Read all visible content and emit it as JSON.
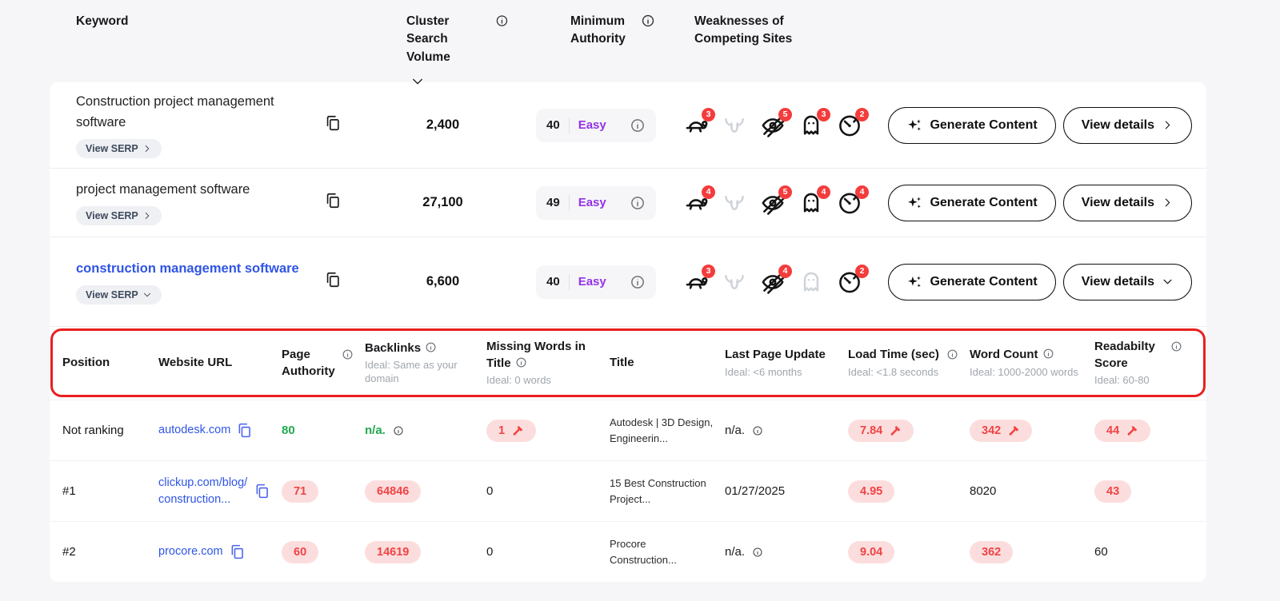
{
  "colors": {
    "accent_purple": "#9333ea",
    "link_blue": "#2f55e6",
    "badge_red": "#f43c3c",
    "pill_bg_red": "#fcdddd",
    "pill_text_red": "#f04444",
    "good_green": "#1faa4e",
    "annotation_red": "#e8201f"
  },
  "header": {
    "keyword": "Keyword",
    "cluster_search_volume": "Cluster Search Volume",
    "minimum_authority": "Minimum Authority",
    "weaknesses": "Weaknesses of Competing Sites"
  },
  "buttons": {
    "view_serp": "View SERP",
    "generate_content": "Generate Content",
    "view_details": "View details"
  },
  "keyword_rows": [
    {
      "keyword": "Construction project management software",
      "highlighted": false,
      "serp_chevron": "right",
      "volume": "2,400",
      "authority_score": "40",
      "authority_label": "Easy",
      "details_chevron": "right",
      "weaknesses": [
        {
          "icon": "turtle",
          "count": "3",
          "active": true
        },
        {
          "icon": "bull",
          "count": "",
          "active": false
        },
        {
          "icon": "eye-slash",
          "count": "5",
          "active": true
        },
        {
          "icon": "ghost",
          "count": "3",
          "active": true
        },
        {
          "icon": "gauge",
          "count": "2",
          "active": true
        }
      ]
    },
    {
      "keyword": "project management software",
      "highlighted": false,
      "serp_chevron": "right",
      "volume": "27,100",
      "authority_score": "49",
      "authority_label": "Easy",
      "details_chevron": "right",
      "weaknesses": [
        {
          "icon": "turtle",
          "count": "4",
          "active": true
        },
        {
          "icon": "bull",
          "count": "",
          "active": false
        },
        {
          "icon": "eye-slash",
          "count": "5",
          "active": true
        },
        {
          "icon": "ghost",
          "count": "4",
          "active": true
        },
        {
          "icon": "gauge",
          "count": "4",
          "active": true
        }
      ]
    },
    {
      "keyword": "construction management software",
      "highlighted": true,
      "serp_chevron": "down",
      "volume": "6,600",
      "authority_score": "40",
      "authority_label": "Easy",
      "details_chevron": "down",
      "weaknesses": [
        {
          "icon": "turtle",
          "count": "3",
          "active": true
        },
        {
          "icon": "bull",
          "count": "",
          "active": false
        },
        {
          "icon": "eye-slash",
          "count": "4",
          "active": true
        },
        {
          "icon": "ghost",
          "count": "",
          "active": false
        },
        {
          "icon": "gauge",
          "count": "2",
          "active": true
        }
      ]
    }
  ],
  "details_table": {
    "columns": [
      {
        "label": "Position",
        "sub": "",
        "info": "none"
      },
      {
        "label": "Website URL",
        "sub": "",
        "info": "none"
      },
      {
        "label": "Page Authority",
        "sub": "",
        "info": "right"
      },
      {
        "label": "Backlinks",
        "sub": "Ideal: Same as your domain",
        "info": "inline"
      },
      {
        "label": "Missing Words in Title",
        "sub": "Ideal: 0 words",
        "info": "inline"
      },
      {
        "label": "Title",
        "sub": "",
        "info": "none"
      },
      {
        "label": "Last Page Update",
        "sub": "Ideal: <6 months",
        "info": "none"
      },
      {
        "label": "Load Time (sec)",
        "sub": "Ideal: <1.8 seconds",
        "info": "right"
      },
      {
        "label": "Word Count",
        "sub": "Ideal: 1000-2000 words",
        "info": "inline"
      },
      {
        "label": "Readabilty Score",
        "sub": "Ideal: 60-80",
        "info": "right"
      }
    ],
    "rows": [
      {
        "position": "Not ranking",
        "url": "autodesk.com",
        "page_authority": {
          "v": "80",
          "s": "green"
        },
        "backlinks": {
          "v": "n/a.",
          "s": "green-info"
        },
        "missing_words": {
          "v": "1",
          "s": "pill-hammer"
        },
        "title": "Autodesk | 3D Design, Engineerin...",
        "last_update": {
          "v": "n/a.",
          "s": "plain-info"
        },
        "load_time": {
          "v": "7.84",
          "s": "pill-hammer"
        },
        "word_count": {
          "v": "342",
          "s": "pill-hammer"
        },
        "readability": {
          "v": "44",
          "s": "pill-hammer"
        }
      },
      {
        "position": "#1",
        "url": "clickup.com/blog/construction...",
        "page_authority": {
          "v": "71",
          "s": "pill"
        },
        "backlinks": {
          "v": "64846",
          "s": "pill"
        },
        "missing_words": {
          "v": "0",
          "s": "plain"
        },
        "title": "15 Best Construction Project...",
        "last_update": {
          "v": "01/27/2025",
          "s": "plain"
        },
        "load_time": {
          "v": "4.95",
          "s": "pill"
        },
        "word_count": {
          "v": "8020",
          "s": "plain"
        },
        "readability": {
          "v": "43",
          "s": "pill"
        }
      },
      {
        "position": "#2",
        "url": "procore.com",
        "page_authority": {
          "v": "60",
          "s": "pill"
        },
        "backlinks": {
          "v": "14619",
          "s": "pill"
        },
        "missing_words": {
          "v": "0",
          "s": "plain"
        },
        "title": "Procore Construction...",
        "last_update": {
          "v": "n/a.",
          "s": "plain-info"
        },
        "load_time": {
          "v": "9.04",
          "s": "pill"
        },
        "word_count": {
          "v": "362",
          "s": "pill"
        },
        "readability": {
          "v": "60",
          "s": "plain"
        }
      }
    ]
  }
}
